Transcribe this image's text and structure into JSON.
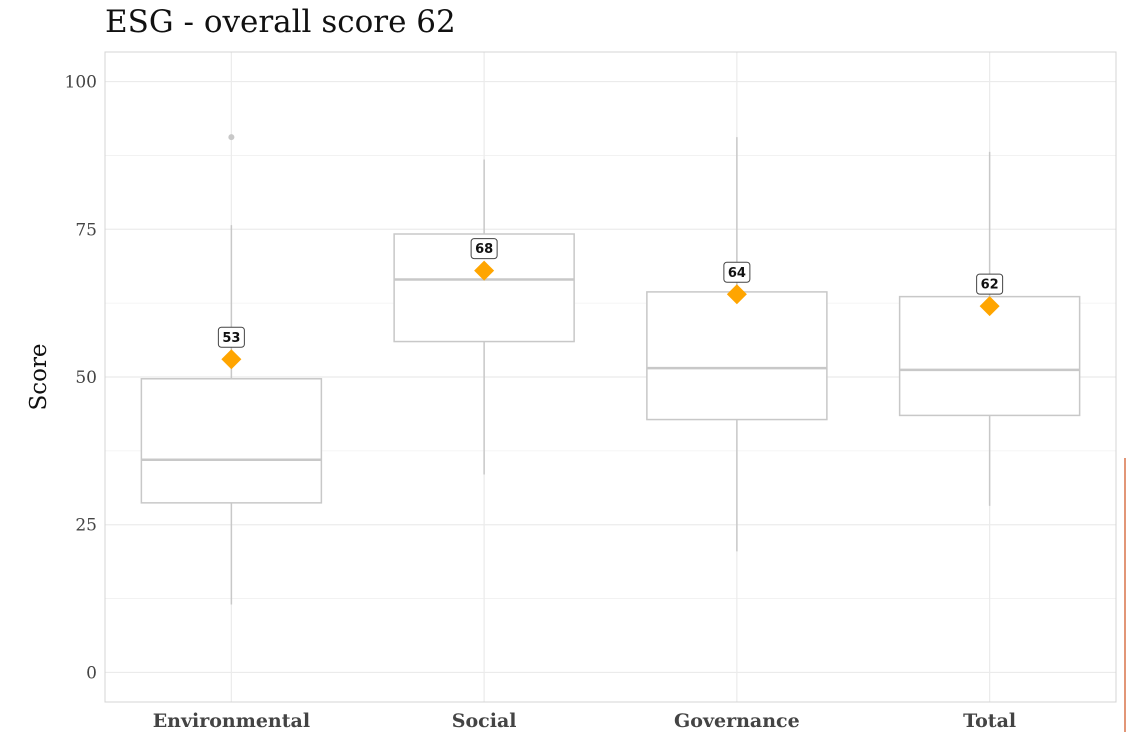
{
  "chart_data": {
    "type": "boxplot",
    "title": "ESG - overall score 62",
    "xlabel": "",
    "ylabel": "Score",
    "ylim": [
      -5,
      105
    ],
    "yticks": [
      0,
      25,
      50,
      75,
      100
    ],
    "grid": true,
    "categories": [
      "Environmental",
      "Social",
      "Governance",
      "Total"
    ],
    "boxes": [
      {
        "category": "Environmental",
        "whisker_low": 11.5,
        "q1": 28.7,
        "median": 36,
        "q3": 49.7,
        "whisker_high": 75.7,
        "outliers": [
          90.6
        ],
        "marker": 53,
        "marker_label": "53"
      },
      {
        "category": "Social",
        "whisker_low": 33.5,
        "q1": 56,
        "median": 66.5,
        "q3": 74.2,
        "whisker_high": 86.8,
        "outliers": [],
        "marker": 68,
        "marker_label": "68"
      },
      {
        "category": "Governance",
        "whisker_low": 20.5,
        "q1": 42.8,
        "median": 51.5,
        "q3": 64.4,
        "whisker_high": 90.6,
        "outliers": [],
        "marker": 64,
        "marker_label": "64"
      },
      {
        "category": "Total",
        "whisker_low": 28.2,
        "q1": 43.5,
        "median": 51.2,
        "q3": 63.6,
        "whisker_high": 88.1,
        "outliers": [],
        "marker": 62,
        "marker_label": "62"
      }
    ],
    "colors": {
      "box": "#c8c8c8",
      "marker": "#ffa500",
      "grid": "#ebebeb",
      "panel_border": "#d4d4d4"
    }
  }
}
